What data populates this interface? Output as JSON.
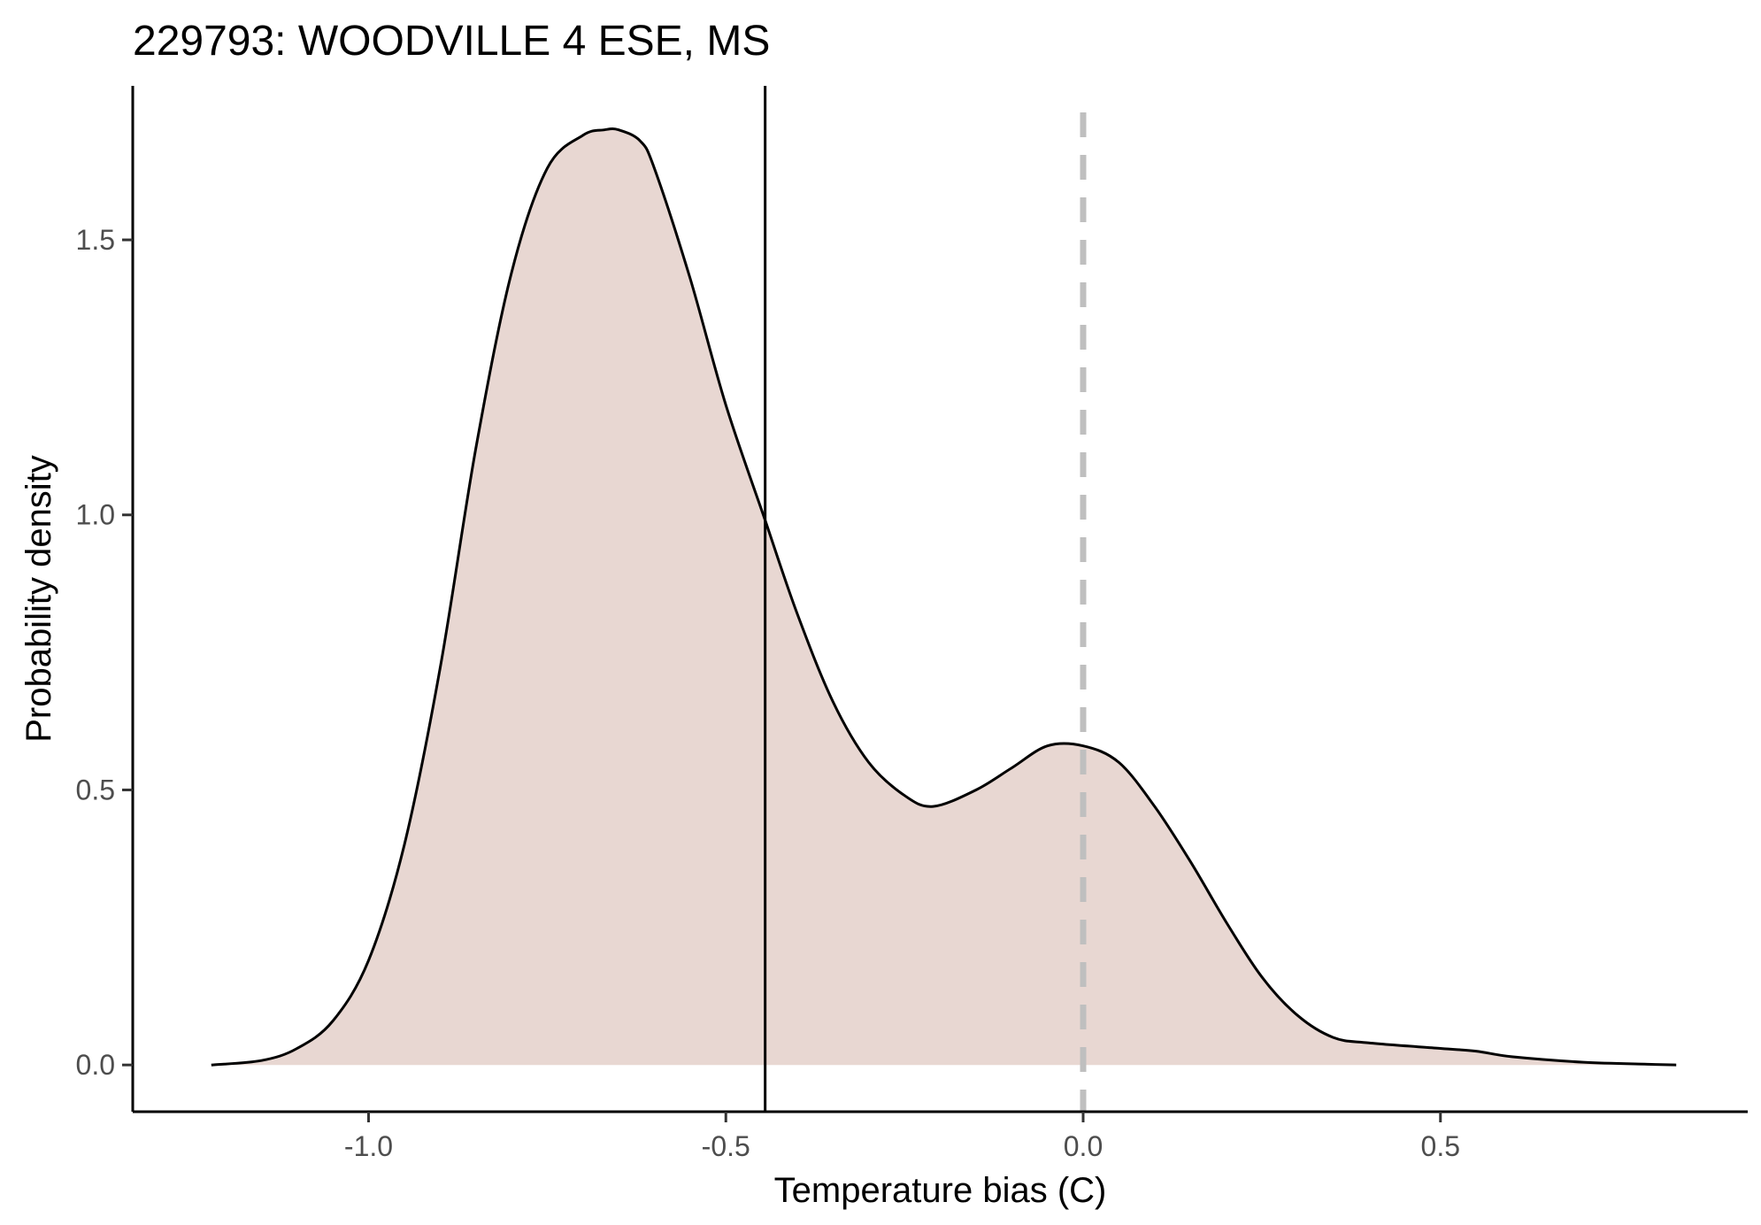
{
  "chart_data": {
    "type": "area",
    "title": "229793: WOODVILLE 4 ESE, MS",
    "xlabel": "Temperature bias (C)",
    "ylabel": "Probability density",
    "xlim": [
      -1.33,
      0.93
    ],
    "ylim": [
      -0.085,
      1.78
    ],
    "x_ticks": [
      -1.0,
      -0.5,
      0.0,
      0.5
    ],
    "x_tick_labels": [
      "-1.0",
      "-0.5",
      "0.0",
      "0.5"
    ],
    "y_ticks": [
      0.0,
      0.5,
      1.0,
      1.5
    ],
    "y_tick_labels": [
      "0.0",
      "0.5",
      "1.0",
      "1.5"
    ],
    "grid": false,
    "fill_color": "#e8d7d2",
    "line_color": "#000000",
    "series": [
      {
        "x": [
          -1.22,
          -1.15,
          -1.1,
          -1.05,
          -1.0,
          -0.95,
          -0.9,
          -0.85,
          -0.8,
          -0.75,
          -0.7,
          -0.67,
          -0.65,
          -0.62,
          -0.6,
          -0.55,
          -0.5,
          -0.445,
          -0.4,
          -0.35,
          -0.3,
          -0.25,
          -0.21,
          -0.15,
          -0.1,
          -0.05,
          0.0,
          0.05,
          0.1,
          0.15,
          0.2,
          0.25,
          0.3,
          0.35,
          0.4,
          0.5,
          0.55,
          0.6,
          0.7,
          0.8,
          0.83
        ],
        "y": [
          0.0,
          0.008,
          0.03,
          0.08,
          0.19,
          0.4,
          0.72,
          1.12,
          1.44,
          1.63,
          1.69,
          1.7,
          1.7,
          1.68,
          1.63,
          1.43,
          1.2,
          0.99,
          0.82,
          0.66,
          0.55,
          0.49,
          0.47,
          0.5,
          0.54,
          0.58,
          0.58,
          0.55,
          0.47,
          0.37,
          0.26,
          0.16,
          0.09,
          0.05,
          0.04,
          0.03,
          0.025,
          0.015,
          0.005,
          0.001,
          0.0
        ]
      }
    ],
    "vlines": [
      {
        "x": -0.445,
        "style": "solid",
        "color": "#000000"
      },
      {
        "x": 0.0,
        "style": "dashed",
        "color": "#bfbfbf"
      }
    ]
  }
}
